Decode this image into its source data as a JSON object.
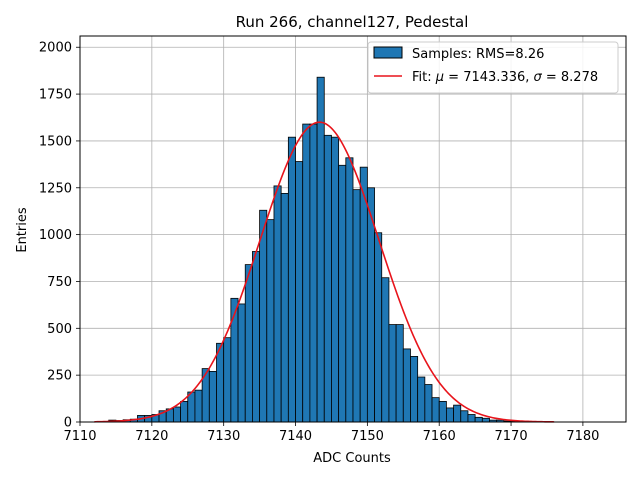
{
  "chart_data": {
    "type": "bar",
    "title": "Run 266, channel127, Pedestal",
    "xlabel": "ADC Counts",
    "ylabel": "Entries",
    "xlim": [
      7110,
      7186
    ],
    "ylim": [
      0,
      2060
    ],
    "xticks": [
      7110,
      7120,
      7130,
      7140,
      7150,
      7160,
      7170,
      7180
    ],
    "yticks": [
      0,
      250,
      500,
      750,
      1000,
      1250,
      1500,
      1750,
      2000
    ],
    "grid": true,
    "legend_position": "top-right",
    "colors": {
      "bars": "#1f77b4",
      "bar_edge": "#000000",
      "fit": "#e8141b"
    },
    "histogram": {
      "name": "Samples: RMS=8.26",
      "bin_start": 7112,
      "bin_width": 1,
      "counts": [
        0,
        0,
        10,
        8,
        12,
        15,
        35,
        35,
        40,
        60,
        70,
        80,
        110,
        160,
        170,
        285,
        270,
        420,
        450,
        660,
        630,
        840,
        910,
        1130,
        1080,
        1260,
        1220,
        1520,
        1390,
        1590,
        1590,
        1840,
        1530,
        1520,
        1370,
        1410,
        1240,
        1360,
        1250,
        1010,
        770,
        520,
        520,
        390,
        350,
        240,
        200,
        130,
        110,
        75,
        90,
        60,
        40,
        25,
        20,
        10,
        10,
        5,
        3,
        2,
        1,
        1,
        0,
        0,
        0,
        0,
        0,
        0,
        0,
        0,
        0
      ]
    },
    "fit": {
      "name_prefix": "Fit: ",
      "mu_symbol": "μ",
      "mu_text": " = 7143.336, ",
      "sigma_symbol": "σ",
      "sigma_text": " = 8.278",
      "mu": 7143.336,
      "sigma": 8.278,
      "amplitude": 1600,
      "x_range": [
        7112,
        7176
      ]
    }
  }
}
